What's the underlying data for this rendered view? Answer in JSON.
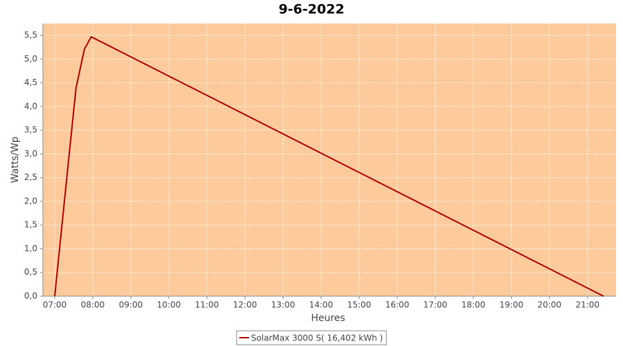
{
  "chart_data": {
    "type": "line",
    "title": "9-6-2022",
    "x_label": "Heures",
    "y_label": "Watts/Wp",
    "x": [
      7.0,
      7.38,
      7.56,
      7.78,
      7.96,
      21.42
    ],
    "series": [
      {
        "name": "SolarMax 3000 S( 16,402 kWh )",
        "color": "#b00000",
        "values": [
          0,
          2.99,
          4.39,
          5.21,
          5.47,
          0
        ]
      }
    ],
    "xlim": [
      6.69,
      21.75
    ],
    "xticks": [
      {
        "value": 7,
        "label": "07:00"
      },
      {
        "value": 8,
        "label": "08:00"
      },
      {
        "value": 9,
        "label": "09:00"
      },
      {
        "value": 10,
        "label": "10:00"
      },
      {
        "value": 11,
        "label": "11:00"
      },
      {
        "value": 12,
        "label": "12:00"
      },
      {
        "value": 13,
        "label": "13:00"
      },
      {
        "value": 14,
        "label": "14:00"
      },
      {
        "value": 15,
        "label": "15:00"
      },
      {
        "value": 16,
        "label": "16:00"
      },
      {
        "value": 17,
        "label": "17:00"
      },
      {
        "value": 18,
        "label": "18:00"
      },
      {
        "value": 19,
        "label": "19:00"
      },
      {
        "value": 20,
        "label": "20:00"
      },
      {
        "value": 21,
        "label": "21:00"
      }
    ],
    "ylim": [
      0,
      5.75
    ],
    "yticks": [
      {
        "value": 0,
        "label": "0,0"
      },
      {
        "value": 0.5,
        "label": "0,5"
      },
      {
        "value": 1,
        "label": "1,0"
      },
      {
        "value": 1.5,
        "label": "1,5"
      },
      {
        "value": 2,
        "label": "2,0"
      },
      {
        "value": 2.5,
        "label": "2,5"
      },
      {
        "value": 3,
        "label": "3,0"
      },
      {
        "value": 3.5,
        "label": "3,5"
      },
      {
        "value": 4,
        "label": "4,0"
      },
      {
        "value": 4.5,
        "label": "4,5"
      },
      {
        "value": 5,
        "label": "5,0"
      },
      {
        "value": 5.5,
        "label": "5,5"
      }
    ],
    "grid": true,
    "background": "#fdca9b",
    "legend": "bottom"
  }
}
